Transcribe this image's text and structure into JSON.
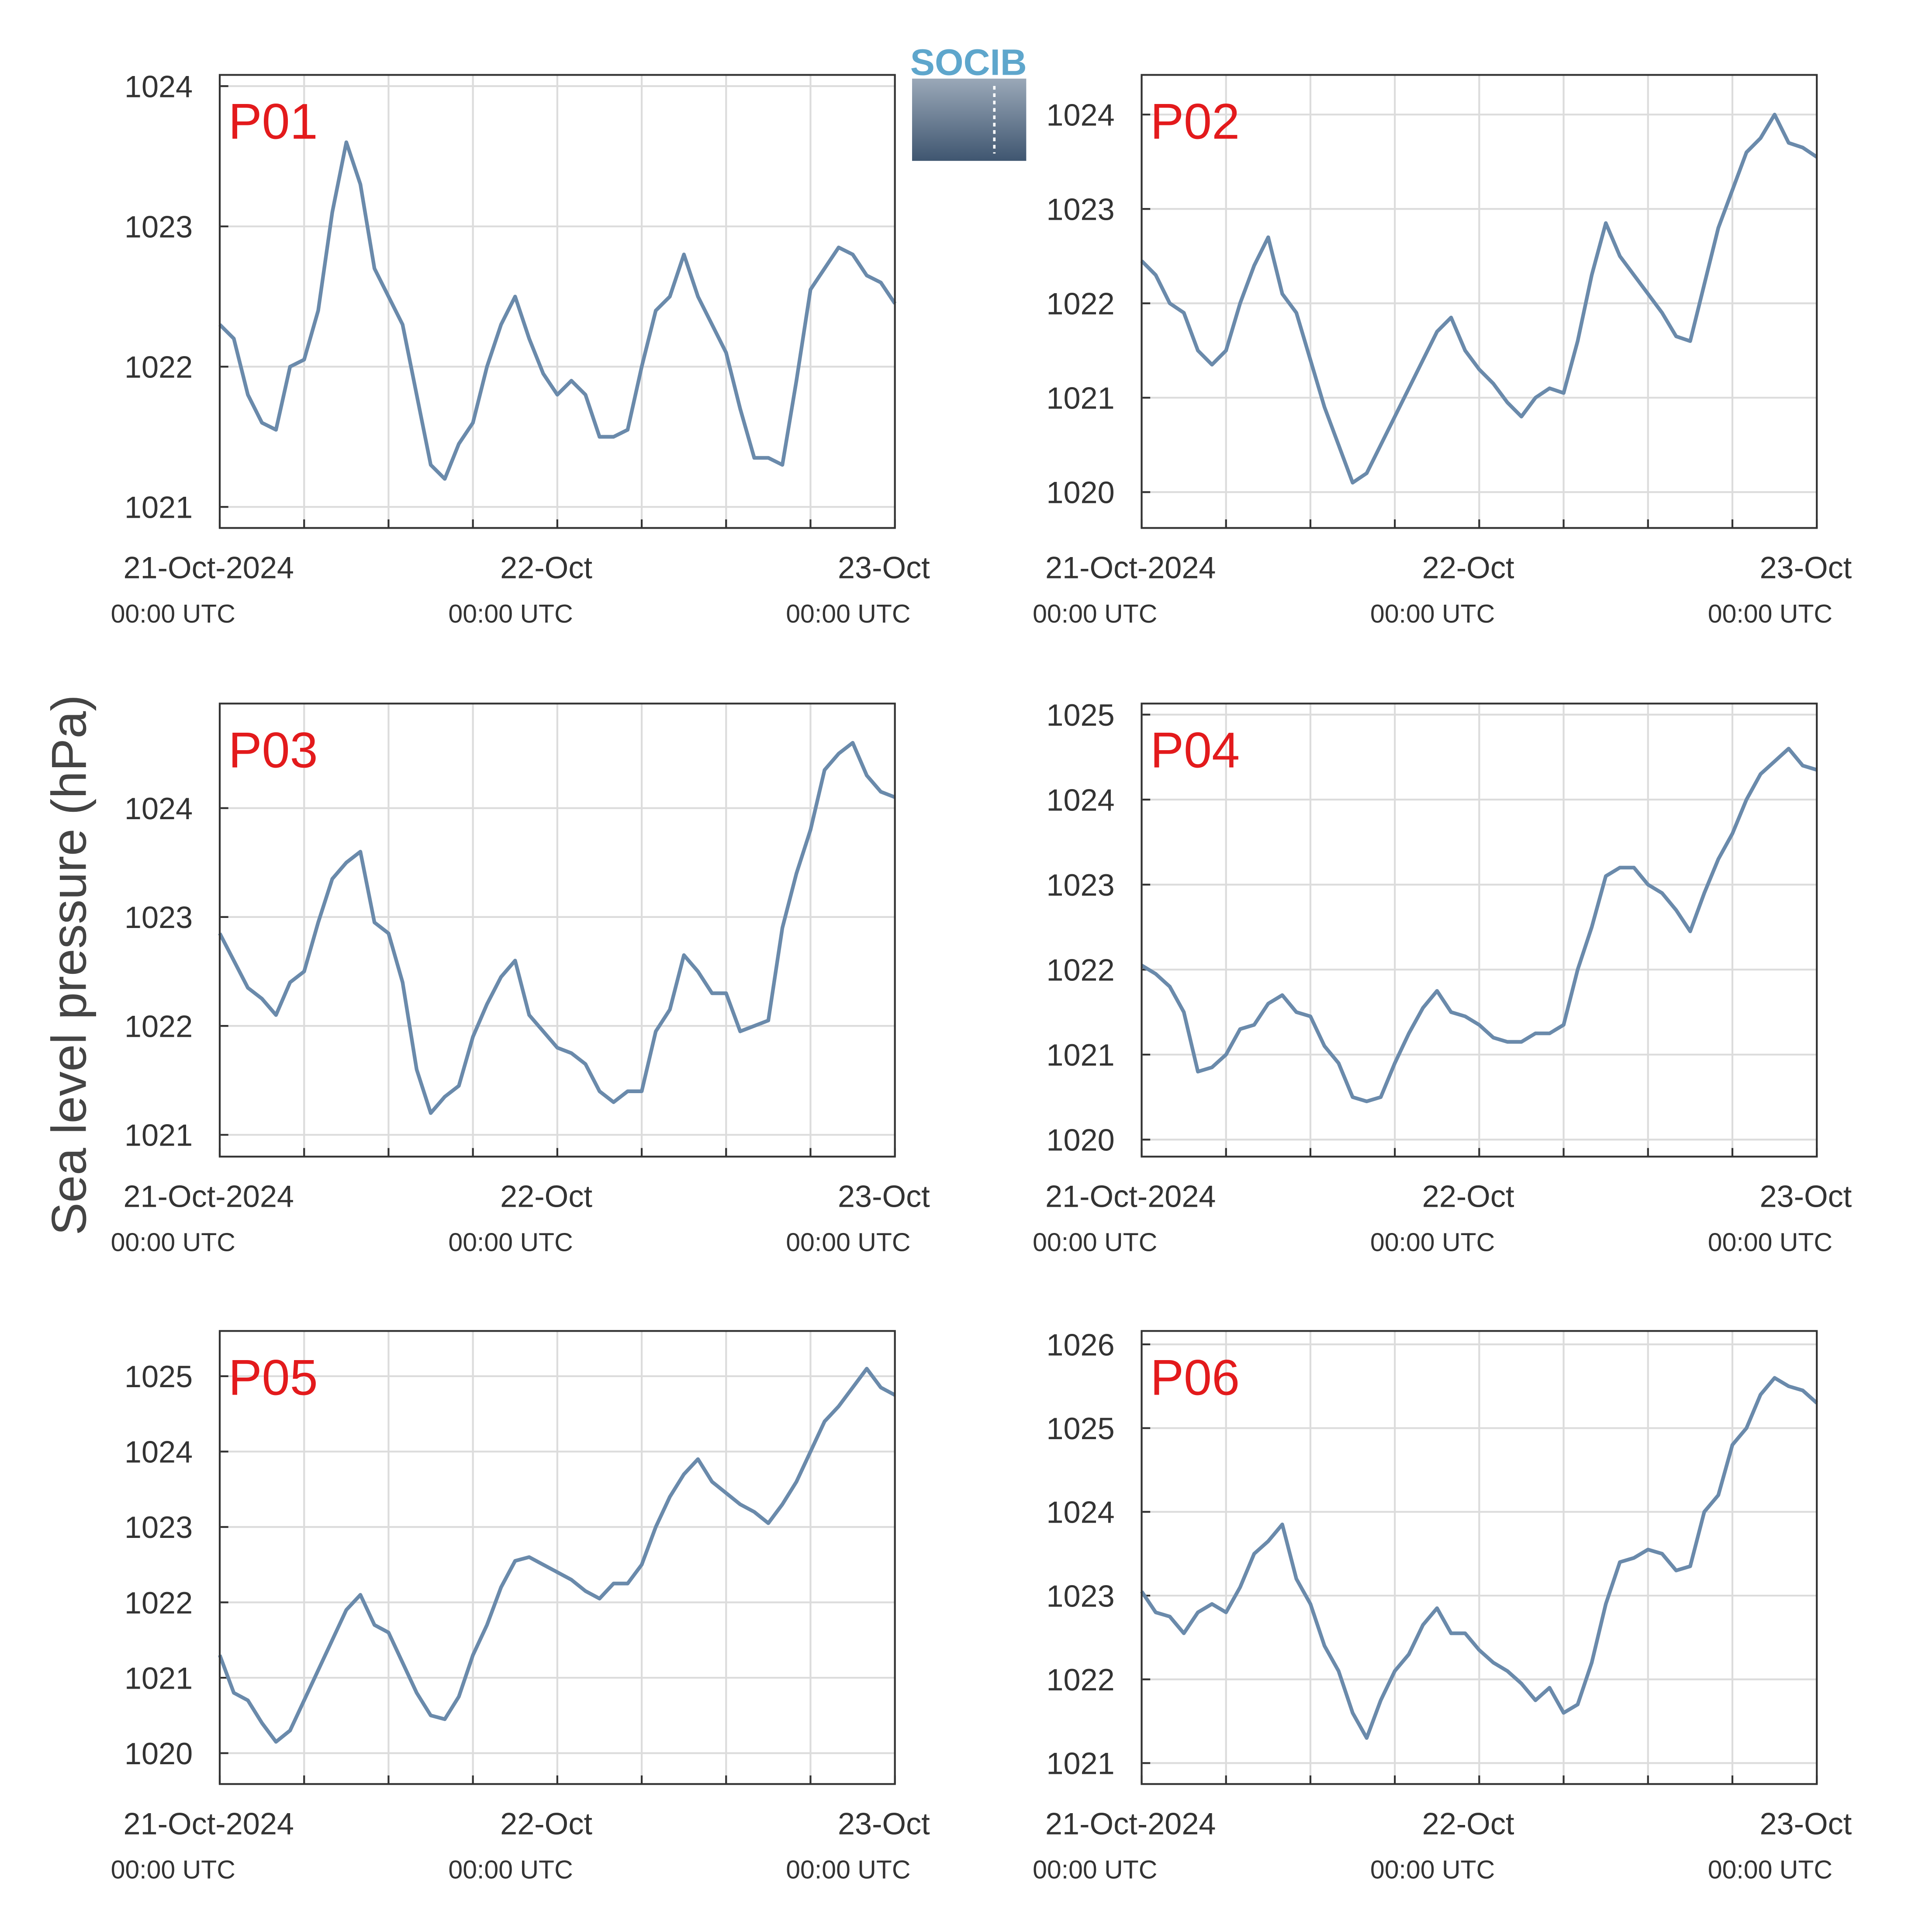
{
  "y_label": "Sea level pressure (hPa)",
  "logo_text": "SOCIB",
  "chart_data": [
    {
      "type": "line",
      "title": "P01",
      "color": "#6a8aab",
      "x": [
        "2024-10-21T00:00Z",
        "2024-10-21T01:00Z",
        "2024-10-21T02:00Z",
        "2024-10-21T03:00Z",
        "2024-10-21T04:00Z",
        "2024-10-21T05:00Z",
        "2024-10-21T06:00Z",
        "2024-10-21T07:00Z",
        "2024-10-21T08:00Z",
        "2024-10-21T09:00Z",
        "2024-10-21T10:00Z",
        "2024-10-21T11:00Z",
        "2024-10-21T12:00Z",
        "2024-10-21T13:00Z",
        "2024-10-21T14:00Z",
        "2024-10-21T15:00Z",
        "2024-10-21T16:00Z",
        "2024-10-21T17:00Z",
        "2024-10-21T18:00Z",
        "2024-10-21T19:00Z",
        "2024-10-21T20:00Z",
        "2024-10-21T21:00Z",
        "2024-10-21T22:00Z",
        "2024-10-21T23:00Z",
        "2024-10-22T00:00Z",
        "2024-10-22T01:00Z",
        "2024-10-22T02:00Z",
        "2024-10-22T03:00Z",
        "2024-10-22T04:00Z",
        "2024-10-22T05:00Z",
        "2024-10-22T06:00Z",
        "2024-10-22T07:00Z",
        "2024-10-22T08:00Z",
        "2024-10-22T09:00Z",
        "2024-10-22T10:00Z",
        "2024-10-22T11:00Z",
        "2024-10-22T12:00Z",
        "2024-10-22T13:00Z",
        "2024-10-22T14:00Z",
        "2024-10-22T15:00Z",
        "2024-10-22T16:00Z",
        "2024-10-22T17:00Z",
        "2024-10-22T18:00Z",
        "2024-10-22T19:00Z",
        "2024-10-22T20:00Z",
        "2024-10-22T21:00Z",
        "2024-10-22T22:00Z",
        "2024-10-22T23:00Z",
        "2024-10-23T00:00Z"
      ],
      "values": [
        1022.3,
        1022.2,
        1021.8,
        1021.6,
        1021.55,
        1022.0,
        1022.05,
        1022.4,
        1023.1,
        1023.6,
        1023.3,
        1022.7,
        1022.5,
        1022.3,
        1021.8,
        1021.3,
        1021.2,
        1021.45,
        1021.6,
        1022.0,
        1022.3,
        1022.5,
        1022.2,
        1021.95,
        1021.8,
        1021.9,
        1021.8,
        1021.5,
        1021.5,
        1021.55,
        1022.0,
        1022.4,
        1022.5,
        1022.8,
        1022.5,
        1022.3,
        1022.1,
        1021.7,
        1021.35,
        1021.35,
        1021.3,
        1021.9,
        1022.55,
        1022.7,
        1022.85,
        1022.8,
        1022.65,
        1022.6,
        1022.45
      ],
      "xlim": [
        "2024-10-21T00:00Z",
        "2024-10-23T00:00Z"
      ],
      "xticks": [
        {
          "value": "2024-10-21T00:00Z",
          "label": "21-Oct-2024"
        },
        {
          "value": "2024-10-22T00:00Z",
          "label": "22-Oct"
        },
        {
          "value": "2024-10-23T00:00Z",
          "label": "23-Oct"
        }
      ],
      "xtick_sublabels": [
        "00:00 UTC",
        "00:00 UTC",
        "00:00 UTC"
      ],
      "xminorticks": [
        "2024-10-21T06:00Z",
        "2024-10-21T12:00Z",
        "2024-10-21T18:00Z",
        "2024-10-22T06:00Z",
        "2024-10-22T12:00Z",
        "2024-10-22T18:00Z"
      ],
      "ylim": [
        1020.85,
        1024.08
      ],
      "yticks": [
        1021,
        1022,
        1023,
        1024
      ],
      "grid": true
    },
    {
      "type": "line",
      "title": "P02",
      "color": "#6a8aab",
      "x": [
        "2024-10-21T00:00Z",
        "2024-10-21T01:00Z",
        "2024-10-21T02:00Z",
        "2024-10-21T03:00Z",
        "2024-10-21T04:00Z",
        "2024-10-21T05:00Z",
        "2024-10-21T06:00Z",
        "2024-10-21T07:00Z",
        "2024-10-21T08:00Z",
        "2024-10-21T09:00Z",
        "2024-10-21T10:00Z",
        "2024-10-21T11:00Z",
        "2024-10-21T12:00Z",
        "2024-10-21T13:00Z",
        "2024-10-21T14:00Z",
        "2024-10-21T15:00Z",
        "2024-10-21T16:00Z",
        "2024-10-21T17:00Z",
        "2024-10-21T18:00Z",
        "2024-10-21T19:00Z",
        "2024-10-21T20:00Z",
        "2024-10-21T21:00Z",
        "2024-10-21T22:00Z",
        "2024-10-21T23:00Z",
        "2024-10-22T00:00Z",
        "2024-10-22T01:00Z",
        "2024-10-22T02:00Z",
        "2024-10-22T03:00Z",
        "2024-10-22T04:00Z",
        "2024-10-22T05:00Z",
        "2024-10-22T06:00Z",
        "2024-10-22T07:00Z",
        "2024-10-22T08:00Z",
        "2024-10-22T09:00Z",
        "2024-10-22T10:00Z",
        "2024-10-22T11:00Z",
        "2024-10-22T12:00Z",
        "2024-10-22T13:00Z",
        "2024-10-22T14:00Z",
        "2024-10-22T15:00Z",
        "2024-10-22T16:00Z",
        "2024-10-22T17:00Z",
        "2024-10-22T18:00Z",
        "2024-10-22T19:00Z",
        "2024-10-22T20:00Z",
        "2024-10-22T21:00Z",
        "2024-10-22T22:00Z",
        "2024-10-22T23:00Z",
        "2024-10-23T00:00Z"
      ],
      "values": [
        1022.45,
        1022.3,
        1022.0,
        1021.9,
        1021.5,
        1021.35,
        1021.5,
        1022.0,
        1022.4,
        1022.7,
        1022.1,
        1021.9,
        1021.4,
        1020.9,
        1020.5,
        1020.1,
        1020.2,
        1020.5,
        1020.8,
        1021.1,
        1021.4,
        1021.7,
        1021.85,
        1021.5,
        1021.3,
        1021.15,
        1020.95,
        1020.8,
        1021.0,
        1021.1,
        1021.05,
        1021.6,
        1022.3,
        1022.85,
        1022.5,
        1022.3,
        1022.1,
        1021.9,
        1021.65,
        1021.6,
        1022.2,
        1022.8,
        1023.2,
        1023.6,
        1023.75,
        1024.0,
        1023.7,
        1023.65,
        1023.55
      ],
      "xlim": [
        "2024-10-21T00:00Z",
        "2024-10-23T00:00Z"
      ],
      "xticks": [
        {
          "value": "2024-10-21T00:00Z",
          "label": "21-Oct-2024"
        },
        {
          "value": "2024-10-22T00:00Z",
          "label": "22-Oct"
        },
        {
          "value": "2024-10-23T00:00Z",
          "label": "23-Oct"
        }
      ],
      "xtick_sublabels": [
        "00:00 UTC",
        "00:00 UTC",
        "00:00 UTC"
      ],
      "xminorticks": [
        "2024-10-21T06:00Z",
        "2024-10-21T12:00Z",
        "2024-10-21T18:00Z",
        "2024-10-22T06:00Z",
        "2024-10-22T12:00Z",
        "2024-10-22T18:00Z"
      ],
      "ylim": [
        1019.62,
        1024.42
      ],
      "yticks": [
        1020,
        1021,
        1022,
        1023,
        1024
      ],
      "grid": true
    },
    {
      "type": "line",
      "title": "P03",
      "color": "#6a8aab",
      "x": [
        "2024-10-21T00:00Z",
        "2024-10-21T01:00Z",
        "2024-10-21T02:00Z",
        "2024-10-21T03:00Z",
        "2024-10-21T04:00Z",
        "2024-10-21T05:00Z",
        "2024-10-21T06:00Z",
        "2024-10-21T07:00Z",
        "2024-10-21T08:00Z",
        "2024-10-21T09:00Z",
        "2024-10-21T10:00Z",
        "2024-10-21T11:00Z",
        "2024-10-21T12:00Z",
        "2024-10-21T13:00Z",
        "2024-10-21T14:00Z",
        "2024-10-21T15:00Z",
        "2024-10-21T16:00Z",
        "2024-10-21T17:00Z",
        "2024-10-21T18:00Z",
        "2024-10-21T19:00Z",
        "2024-10-21T20:00Z",
        "2024-10-21T21:00Z",
        "2024-10-21T22:00Z",
        "2024-10-21T23:00Z",
        "2024-10-22T00:00Z",
        "2024-10-22T01:00Z",
        "2024-10-22T02:00Z",
        "2024-10-22T03:00Z",
        "2024-10-22T04:00Z",
        "2024-10-22T05:00Z",
        "2024-10-22T06:00Z",
        "2024-10-22T07:00Z",
        "2024-10-22T08:00Z",
        "2024-10-22T09:00Z",
        "2024-10-22T10:00Z",
        "2024-10-22T11:00Z",
        "2024-10-22T12:00Z",
        "2024-10-22T13:00Z",
        "2024-10-22T14:00Z",
        "2024-10-22T15:00Z",
        "2024-10-22T16:00Z",
        "2024-10-22T17:00Z",
        "2024-10-22T18:00Z",
        "2024-10-22T19:00Z",
        "2024-10-22T20:00Z",
        "2024-10-22T21:00Z",
        "2024-10-22T22:00Z",
        "2024-10-22T23:00Z",
        "2024-10-23T00:00Z"
      ],
      "values": [
        1022.85,
        1022.6,
        1022.35,
        1022.25,
        1022.1,
        1022.4,
        1022.5,
        1022.95,
        1023.35,
        1023.5,
        1023.6,
        1022.95,
        1022.85,
        1022.4,
        1021.6,
        1021.2,
        1021.35,
        1021.45,
        1021.9,
        1022.2,
        1022.45,
        1022.6,
        1022.1,
        1021.95,
        1021.8,
        1021.75,
        1021.65,
        1021.4,
        1021.3,
        1021.4,
        1021.4,
        1021.95,
        1022.15,
        1022.65,
        1022.5,
        1022.3,
        1022.3,
        1021.95,
        1022.0,
        1022.05,
        1022.9,
        1023.4,
        1023.8,
        1024.35,
        1024.5,
        1024.6,
        1024.3,
        1024.15,
        1024.1
      ],
      "xlim": [
        "2024-10-21T00:00Z",
        "2024-10-23T00:00Z"
      ],
      "xticks": [
        {
          "value": "2024-10-21T00:00Z",
          "label": "21-Oct-2024"
        },
        {
          "value": "2024-10-22T00:00Z",
          "label": "22-Oct"
        },
        {
          "value": "2024-10-23T00:00Z",
          "label": "23-Oct"
        }
      ],
      "xtick_sublabels": [
        "00:00 UTC",
        "00:00 UTC",
        "00:00 UTC"
      ],
      "xminorticks": [
        "2024-10-21T06:00Z",
        "2024-10-21T12:00Z",
        "2024-10-21T18:00Z",
        "2024-10-22T06:00Z",
        "2024-10-22T12:00Z",
        "2024-10-22T18:00Z"
      ],
      "ylim": [
        1020.8,
        1024.96
      ],
      "yticks": [
        1021,
        1022,
        1023,
        1024
      ],
      "grid": true
    },
    {
      "type": "line",
      "title": "P04",
      "color": "#6a8aab",
      "x": [
        "2024-10-21T00:00Z",
        "2024-10-21T01:00Z",
        "2024-10-21T02:00Z",
        "2024-10-21T03:00Z",
        "2024-10-21T04:00Z",
        "2024-10-21T05:00Z",
        "2024-10-21T06:00Z",
        "2024-10-21T07:00Z",
        "2024-10-21T08:00Z",
        "2024-10-21T09:00Z",
        "2024-10-21T10:00Z",
        "2024-10-21T11:00Z",
        "2024-10-21T12:00Z",
        "2024-10-21T13:00Z",
        "2024-10-21T14:00Z",
        "2024-10-21T15:00Z",
        "2024-10-21T16:00Z",
        "2024-10-21T17:00Z",
        "2024-10-21T18:00Z",
        "2024-10-21T19:00Z",
        "2024-10-21T20:00Z",
        "2024-10-21T21:00Z",
        "2024-10-21T22:00Z",
        "2024-10-21T23:00Z",
        "2024-10-22T00:00Z",
        "2024-10-22T01:00Z",
        "2024-10-22T02:00Z",
        "2024-10-22T03:00Z",
        "2024-10-22T04:00Z",
        "2024-10-22T05:00Z",
        "2024-10-22T06:00Z",
        "2024-10-22T07:00Z",
        "2024-10-22T08:00Z",
        "2024-10-22T09:00Z",
        "2024-10-22T10:00Z",
        "2024-10-22T11:00Z",
        "2024-10-22T12:00Z",
        "2024-10-22T13:00Z",
        "2024-10-22T14:00Z",
        "2024-10-22T15:00Z",
        "2024-10-22T16:00Z",
        "2024-10-22T17:00Z",
        "2024-10-22T18:00Z",
        "2024-10-22T19:00Z",
        "2024-10-22T20:00Z",
        "2024-10-22T21:00Z",
        "2024-10-22T22:00Z",
        "2024-10-22T23:00Z",
        "2024-10-23T00:00Z"
      ],
      "values": [
        1022.05,
        1021.95,
        1021.8,
        1021.5,
        1020.8,
        1020.85,
        1021.0,
        1021.3,
        1021.35,
        1021.6,
        1021.7,
        1021.5,
        1021.45,
        1021.1,
        1020.9,
        1020.5,
        1020.45,
        1020.5,
        1020.9,
        1021.25,
        1021.55,
        1021.75,
        1021.5,
        1021.45,
        1021.35,
        1021.2,
        1021.15,
        1021.15,
        1021.25,
        1021.25,
        1021.35,
        1022.0,
        1022.5,
        1023.1,
        1023.2,
        1023.2,
        1023.0,
        1022.9,
        1022.7,
        1022.45,
        1022.9,
        1023.3,
        1023.6,
        1024.0,
        1024.3,
        1024.45,
        1024.6,
        1024.4,
        1024.35
      ],
      "xlim": [
        "2024-10-21T00:00Z",
        "2024-10-23T00:00Z"
      ],
      "xticks": [
        {
          "value": "2024-10-21T00:00Z",
          "label": "21-Oct-2024"
        },
        {
          "value": "2024-10-22T00:00Z",
          "label": "22-Oct"
        },
        {
          "value": "2024-10-23T00:00Z",
          "label": "23-Oct"
        }
      ],
      "xtick_sublabels": [
        "00:00 UTC",
        "00:00 UTC",
        "00:00 UTC"
      ],
      "xminorticks": [
        "2024-10-21T06:00Z",
        "2024-10-21T12:00Z",
        "2024-10-21T18:00Z",
        "2024-10-22T06:00Z",
        "2024-10-22T12:00Z",
        "2024-10-22T18:00Z"
      ],
      "ylim": [
        1019.8,
        1025.13
      ],
      "yticks": [
        1020,
        1021,
        1022,
        1023,
        1024,
        1025
      ],
      "grid": true
    },
    {
      "type": "line",
      "title": "P05",
      "color": "#6a8aab",
      "x": [
        "2024-10-21T00:00Z",
        "2024-10-21T01:00Z",
        "2024-10-21T02:00Z",
        "2024-10-21T03:00Z",
        "2024-10-21T04:00Z",
        "2024-10-21T05:00Z",
        "2024-10-21T06:00Z",
        "2024-10-21T07:00Z",
        "2024-10-21T08:00Z",
        "2024-10-21T09:00Z",
        "2024-10-21T10:00Z",
        "2024-10-21T11:00Z",
        "2024-10-21T12:00Z",
        "2024-10-21T13:00Z",
        "2024-10-21T14:00Z",
        "2024-10-21T15:00Z",
        "2024-10-21T16:00Z",
        "2024-10-21T17:00Z",
        "2024-10-21T18:00Z",
        "2024-10-21T19:00Z",
        "2024-10-21T20:00Z",
        "2024-10-21T21:00Z",
        "2024-10-21T22:00Z",
        "2024-10-21T23:00Z",
        "2024-10-22T00:00Z",
        "2024-10-22T01:00Z",
        "2024-10-22T02:00Z",
        "2024-10-22T03:00Z",
        "2024-10-22T04:00Z",
        "2024-10-22T05:00Z",
        "2024-10-22T06:00Z",
        "2024-10-22T07:00Z",
        "2024-10-22T08:00Z",
        "2024-10-22T09:00Z",
        "2024-10-22T10:00Z",
        "2024-10-22T11:00Z",
        "2024-10-22T12:00Z",
        "2024-10-22T13:00Z",
        "2024-10-22T14:00Z",
        "2024-10-22T15:00Z",
        "2024-10-22T16:00Z",
        "2024-10-22T17:00Z",
        "2024-10-22T18:00Z",
        "2024-10-22T19:00Z",
        "2024-10-22T20:00Z",
        "2024-10-22T21:00Z",
        "2024-10-22T22:00Z",
        "2024-10-22T23:00Z",
        "2024-10-23T00:00Z"
      ],
      "values": [
        1021.3,
        1020.8,
        1020.7,
        1020.4,
        1020.15,
        1020.3,
        1020.7,
        1021.1,
        1021.5,
        1021.9,
        1022.1,
        1021.7,
        1021.6,
        1021.2,
        1020.8,
        1020.5,
        1020.45,
        1020.75,
        1021.3,
        1021.7,
        1022.2,
        1022.55,
        1022.6,
        1022.5,
        1022.4,
        1022.3,
        1022.15,
        1022.05,
        1022.25,
        1022.25,
        1022.5,
        1023.0,
        1023.4,
        1023.7,
        1023.9,
        1023.6,
        1023.45,
        1023.3,
        1023.2,
        1023.05,
        1023.3,
        1023.6,
        1024.0,
        1024.4,
        1024.6,
        1024.85,
        1025.1,
        1024.85,
        1024.75
      ],
      "xlim": [
        "2024-10-21T00:00Z",
        "2024-10-23T00:00Z"
      ],
      "xticks": [
        {
          "value": "2024-10-21T00:00Z",
          "label": "21-Oct-2024"
        },
        {
          "value": "2024-10-22T00:00Z",
          "label": "22-Oct"
        },
        {
          "value": "2024-10-23T00:00Z",
          "label": "23-Oct"
        }
      ],
      "xtick_sublabels": [
        "00:00 UTC",
        "00:00 UTC",
        "00:00 UTC"
      ],
      "xminorticks": [
        "2024-10-21T06:00Z",
        "2024-10-21T12:00Z",
        "2024-10-21T18:00Z",
        "2024-10-22T06:00Z",
        "2024-10-22T12:00Z",
        "2024-10-22T18:00Z"
      ],
      "ylim": [
        1019.59,
        1025.6
      ],
      "yticks": [
        1020,
        1021,
        1022,
        1023,
        1024,
        1025
      ],
      "grid": true
    },
    {
      "type": "line",
      "title": "P06",
      "color": "#6a8aab",
      "x": [
        "2024-10-21T00:00Z",
        "2024-10-21T01:00Z",
        "2024-10-21T02:00Z",
        "2024-10-21T03:00Z",
        "2024-10-21T04:00Z",
        "2024-10-21T05:00Z",
        "2024-10-21T06:00Z",
        "2024-10-21T07:00Z",
        "2024-10-21T08:00Z",
        "2024-10-21T09:00Z",
        "2024-10-21T10:00Z",
        "2024-10-21T11:00Z",
        "2024-10-21T12:00Z",
        "2024-10-21T13:00Z",
        "2024-10-21T14:00Z",
        "2024-10-21T15:00Z",
        "2024-10-21T16:00Z",
        "2024-10-21T17:00Z",
        "2024-10-21T18:00Z",
        "2024-10-21T19:00Z",
        "2024-10-21T20:00Z",
        "2024-10-21T21:00Z",
        "2024-10-21T22:00Z",
        "2024-10-21T23:00Z",
        "2024-10-22T00:00Z",
        "2024-10-22T01:00Z",
        "2024-10-22T02:00Z",
        "2024-10-22T03:00Z",
        "2024-10-22T04:00Z",
        "2024-10-22T05:00Z",
        "2024-10-22T06:00Z",
        "2024-10-22T07:00Z",
        "2024-10-22T08:00Z",
        "2024-10-22T09:00Z",
        "2024-10-22T10:00Z",
        "2024-10-22T11:00Z",
        "2024-10-22T12:00Z",
        "2024-10-22T13:00Z",
        "2024-10-22T14:00Z",
        "2024-10-22T15:00Z",
        "2024-10-22T16:00Z",
        "2024-10-22T17:00Z",
        "2024-10-22T18:00Z",
        "2024-10-22T19:00Z",
        "2024-10-22T20:00Z",
        "2024-10-22T21:00Z",
        "2024-10-22T22:00Z",
        "2024-10-22T23:00Z",
        "2024-10-23T00:00Z"
      ],
      "values": [
        1023.05,
        1022.8,
        1022.75,
        1022.55,
        1022.8,
        1022.9,
        1022.8,
        1023.1,
        1023.5,
        1023.65,
        1023.85,
        1023.2,
        1022.9,
        1022.4,
        1022.1,
        1021.6,
        1021.3,
        1021.75,
        1022.1,
        1022.3,
        1022.65,
        1022.85,
        1022.55,
        1022.55,
        1022.35,
        1022.2,
        1022.1,
        1021.95,
        1021.75,
        1021.9,
        1021.6,
        1021.7,
        1022.2,
        1022.9,
        1023.4,
        1023.45,
        1023.55,
        1023.5,
        1023.3,
        1023.35,
        1024.0,
        1024.2,
        1024.8,
        1025.0,
        1025.4,
        1025.6,
        1025.5,
        1025.45,
        1025.3
      ],
      "xlim": [
        "2024-10-21T00:00Z",
        "2024-10-23T00:00Z"
      ],
      "xticks": [
        {
          "value": "2024-10-21T00:00Z",
          "label": "21-Oct-2024"
        },
        {
          "value": "2024-10-22T00:00Z",
          "label": "22-Oct"
        },
        {
          "value": "2024-10-23T00:00Z",
          "label": "23-Oct"
        }
      ],
      "xtick_sublabels": [
        "00:00 UTC",
        "00:00 UTC",
        "00:00 UTC"
      ],
      "xminorticks": [
        "2024-10-21T06:00Z",
        "2024-10-21T12:00Z",
        "2024-10-21T18:00Z",
        "2024-10-22T06:00Z",
        "2024-10-22T12:00Z",
        "2024-10-22T18:00Z"
      ],
      "ylim": [
        1020.75,
        1026.16
      ],
      "yticks": [
        1021,
        1022,
        1023,
        1024,
        1025,
        1026
      ],
      "grid": true
    }
  ]
}
